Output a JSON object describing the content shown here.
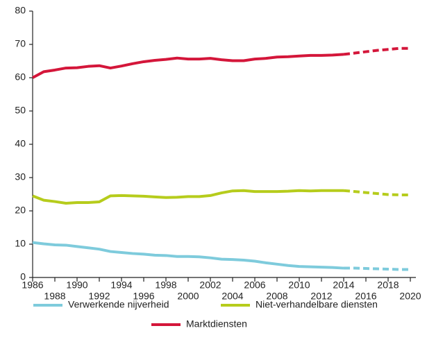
{
  "chart_data": {
    "type": "line",
    "x": [
      1986,
      1987,
      1988,
      1989,
      1990,
      1991,
      1992,
      1993,
      1994,
      1995,
      1996,
      1997,
      1998,
      1999,
      2000,
      2001,
      2002,
      2003,
      2004,
      2005,
      2006,
      2007,
      2008,
      2009,
      2010,
      2011,
      2012,
      2013,
      2014,
      2015,
      2016,
      2017,
      2018,
      2019,
      2020
    ],
    "series": [
      {
        "name": "Verwerkende nijverheid",
        "color": "#7ecbdc",
        "values": [
          10.5,
          10.1,
          9.8,
          9.7,
          9.3,
          8.9,
          8.5,
          7.8,
          7.5,
          7.2,
          7.0,
          6.7,
          6.6,
          6.3,
          6.3,
          6.2,
          5.9,
          5.5,
          5.4,
          5.2,
          4.9,
          4.4,
          4.0,
          3.6,
          3.3,
          3.2,
          3.1,
          3.0,
          2.8,
          2.8,
          2.7,
          2.6,
          2.5,
          2.4,
          2.4
        ]
      },
      {
        "name": "Niet-verhandelbare diensten",
        "color": "#b6cc1c",
        "values": [
          24.5,
          23.2,
          22.8,
          22.3,
          22.5,
          22.5,
          22.7,
          24.5,
          24.6,
          24.5,
          24.4,
          24.2,
          24.0,
          24.1,
          24.3,
          24.3,
          24.6,
          25.4,
          26.0,
          26.1,
          25.8,
          25.8,
          25.8,
          25.9,
          26.1,
          26.0,
          26.1,
          26.1,
          26.1,
          25.8,
          25.5,
          25.2,
          24.9,
          24.8,
          24.8
        ]
      },
      {
        "name": "Marktdiensten",
        "color": "#d4163a",
        "values": [
          60.0,
          61.8,
          62.3,
          62.9,
          63.0,
          63.4,
          63.6,
          62.9,
          63.5,
          64.2,
          64.8,
          65.2,
          65.5,
          65.9,
          65.6,
          65.6,
          65.8,
          65.4,
          65.1,
          65.1,
          65.6,
          65.8,
          66.2,
          66.3,
          66.5,
          66.7,
          66.7,
          66.8,
          67.0,
          67.4,
          67.8,
          68.2,
          68.5,
          68.8,
          68.8
        ]
      }
    ],
    "forecast_from": 2014,
    "xlim": [
      1986,
      2020
    ],
    "xticks": [
      1986,
      1988,
      1990,
      1992,
      1994,
      1996,
      1998,
      2000,
      2002,
      2004,
      2006,
      2008,
      2010,
      2012,
      2014,
      2016,
      2018,
      2020
    ],
    "ylim": [
      0,
      80
    ],
    "yticks": [
      0,
      10,
      20,
      30,
      40,
      50,
      60,
      70,
      80
    ],
    "grid": false
  }
}
